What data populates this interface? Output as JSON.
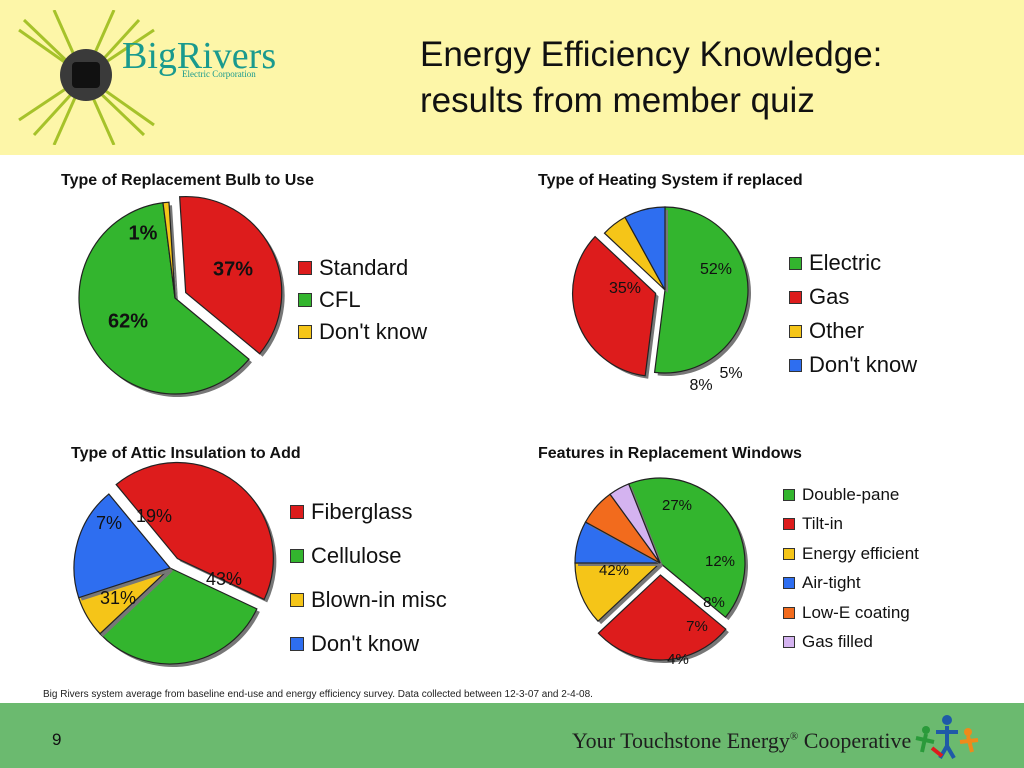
{
  "slide": {
    "title_line1": "Energy Efficiency Knowledge:",
    "title_line2": "results from member quiz",
    "logo_name": "BigRivers",
    "logo_sub": "Electric Corporation",
    "source_note": "Big Rivers system average from baseline end-use and energy efficiency survey. Data collected between 12-3-07 and 2-4-08.",
    "page_number": "9",
    "footer_brand": "Your Touchstone Energy",
    "footer_brand_suffix": " Cooperative",
    "footer_reg": "®",
    "colors": {
      "header_bg": "#fdf6a8",
      "footer_bg": "#6bba6f",
      "logo_teal": "#1a9a8e"
    }
  },
  "chart_data": [
    {
      "type": "pie",
      "title": "Type of Replacement Bulb to Use",
      "legend_placement": "right",
      "slices": [
        {
          "label": "Standard",
          "value": 37,
          "value_label": "37%",
          "color": "#dd1c1c",
          "exploded": true
        },
        {
          "label": "CFL",
          "value": 62,
          "value_label": "62%",
          "color": "#33b52e",
          "exploded": false
        },
        {
          "label": "Don't know",
          "value": 1,
          "value_label": "1%",
          "color": "#f5c518",
          "exploded": false
        }
      ]
    },
    {
      "type": "pie",
      "title": "Type of Heating System if replaced",
      "legend_placement": "right",
      "slices": [
        {
          "label": "Electric",
          "value": 52,
          "value_label": "52%",
          "color": "#33b52e",
          "exploded": false
        },
        {
          "label": "Gas",
          "value": 35,
          "value_label": "35%",
          "color": "#dd1c1c",
          "exploded": true
        },
        {
          "label": "Other",
          "value": 5,
          "value_label": "5%",
          "color": "#f5c518",
          "exploded": false
        },
        {
          "label": "Don't know",
          "value": 8,
          "value_label": "8%",
          "color": "#2e6ef0",
          "exploded": false
        }
      ]
    },
    {
      "type": "pie",
      "title": "Type of Attic Insulation to Add",
      "legend_placement": "right",
      "slices": [
        {
          "label": "Fiberglass",
          "value": 43,
          "value_label": "43%",
          "color": "#dd1c1c",
          "exploded": true
        },
        {
          "label": "Cellulose",
          "value": 31,
          "value_label": "31%",
          "color": "#33b52e",
          "exploded": false
        },
        {
          "label": "Blown-in misc",
          "value": 7,
          "value_label": "7%",
          "color": "#f5c518",
          "exploded": false
        },
        {
          "label": "Don't know",
          "value": 19,
          "value_label": "19%",
          "color": "#2e6ef0",
          "exploded": false
        }
      ]
    },
    {
      "type": "pie",
      "title": "Features in Replacement Windows",
      "legend_placement": "right",
      "slices": [
        {
          "label": "Double-pane",
          "value": 42,
          "value_label": "42%",
          "color": "#33b52e",
          "exploded": false
        },
        {
          "label": "Tilt-in",
          "value": 27,
          "value_label": "27%",
          "color": "#dd1c1c",
          "exploded": true
        },
        {
          "label": "Energy efficient",
          "value": 12,
          "value_label": "12%",
          "color": "#f5c518",
          "exploded": false
        },
        {
          "label": "Air-tight",
          "value": 8,
          "value_label": "8%",
          "color": "#2e6ef0",
          "exploded": false
        },
        {
          "label": "Low-E coating",
          "value": 7,
          "value_label": "7%",
          "color": "#f26b1d",
          "exploded": false
        },
        {
          "label": "Gas filled",
          "value": 4,
          "value_label": "4%",
          "color": "#d4b3f0",
          "exploded": false
        }
      ]
    }
  ]
}
